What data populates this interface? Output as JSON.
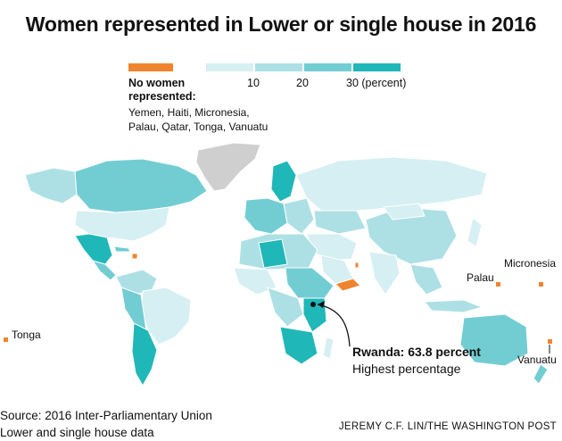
{
  "title": "Women represented in Lower or single house in 2016",
  "legend": {
    "no_women_color": "#f0842e",
    "scale_colors": [
      "#d6eff2",
      "#ade0e5",
      "#72cdd3",
      "#20b7b8"
    ],
    "ticks": [
      "10",
      "20",
      "30 (percent)"
    ],
    "no_women_title": "No women represented:",
    "no_women_countries": [
      "Yemen, Haiti, Micronesia,",
      "Palau, Qatar, Tonga, Vanuatu"
    ]
  },
  "places": {
    "tonga": "Tonga",
    "palau": "Palau",
    "micronesia": "Micronesia",
    "vanuatu": "Vanuatu"
  },
  "callout": {
    "title": "Rwanda: 63.8 percent",
    "subtitle": "Highest percentage"
  },
  "source": [
    "Source: 2016 Inter-Parliamentary Union",
    "Lower and single house data"
  ],
  "credit": "JEREMY C.F. LIN/THE WASHINGTON POST",
  "colors": {
    "no_data": "#cfcfcf",
    "border": "#ffffff"
  }
}
